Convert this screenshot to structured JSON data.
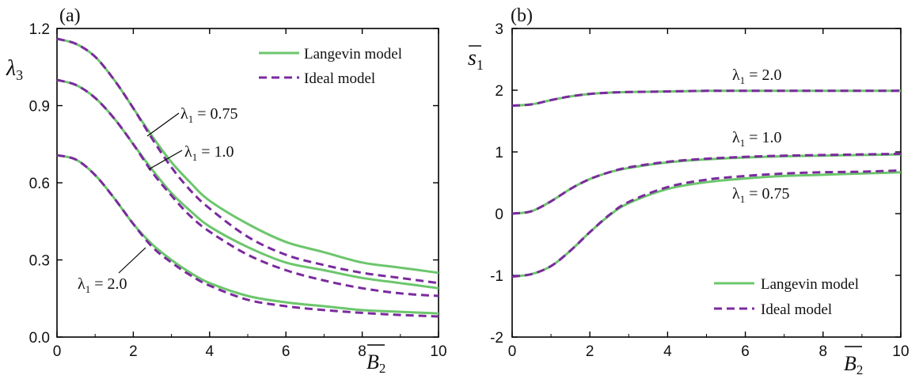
{
  "colors": {
    "langevin": "#6cc66c",
    "ideal": "#7b2a9e",
    "axis": "#000000"
  },
  "chart_data": [
    {
      "type": "line",
      "panel_label": "(a)",
      "xlabel": "B",
      "xlabel_sub": "2",
      "ylabel": "λ",
      "ylabel_sub": "3",
      "xlim": [
        0,
        10
      ],
      "ylim": [
        0,
        1.2
      ],
      "xticks": [
        "0",
        "2",
        "4",
        "6",
        "8",
        "10"
      ],
      "yticks": [
        "0.0",
        "0.3",
        "0.6",
        "0.9",
        "1.2"
      ],
      "legend": {
        "position": "top-right",
        "entries": [
          "Langevin model",
          "Ideal model"
        ]
      },
      "series": [
        {
          "name": "Langevin model",
          "curve": "λ1 = 0.75",
          "x": [
            0,
            0.5,
            1,
            1.5,
            2,
            2.5,
            3,
            3.5,
            4,
            5,
            6,
            7,
            8,
            9,
            10
          ],
          "y": [
            1.16,
            1.14,
            1.09,
            1.0,
            0.89,
            0.78,
            0.68,
            0.6,
            0.53,
            0.44,
            0.37,
            0.33,
            0.29,
            0.27,
            0.25
          ]
        },
        {
          "name": "Ideal model",
          "curve": "λ1 = 0.75",
          "x": [
            0,
            0.5,
            1,
            1.5,
            2,
            2.5,
            3,
            3.5,
            4,
            5,
            6,
            7,
            8,
            9,
            10
          ],
          "y": [
            1.16,
            1.14,
            1.09,
            1.0,
            0.89,
            0.77,
            0.66,
            0.57,
            0.5,
            0.39,
            0.32,
            0.28,
            0.25,
            0.23,
            0.21
          ]
        },
        {
          "name": "Langevin model",
          "curve": "λ1 = 1.0",
          "x": [
            0,
            0.5,
            1,
            1.5,
            2,
            2.5,
            3,
            3.5,
            4,
            5,
            6,
            7,
            8,
            9,
            10
          ],
          "y": [
            1.0,
            0.98,
            0.93,
            0.85,
            0.75,
            0.65,
            0.56,
            0.49,
            0.43,
            0.35,
            0.29,
            0.26,
            0.23,
            0.21,
            0.19
          ]
        },
        {
          "name": "Ideal model",
          "curve": "λ1 = 1.0",
          "x": [
            0,
            0.5,
            1,
            1.5,
            2,
            2.5,
            3,
            3.5,
            4,
            5,
            6,
            7,
            8,
            9,
            10
          ],
          "y": [
            1.0,
            0.98,
            0.93,
            0.85,
            0.75,
            0.64,
            0.55,
            0.47,
            0.41,
            0.32,
            0.26,
            0.22,
            0.19,
            0.17,
            0.16
          ]
        },
        {
          "name": "Langevin model",
          "curve": "λ1 = 2.0",
          "x": [
            0,
            0.5,
            1,
            1.5,
            2,
            2.5,
            3,
            3.5,
            4,
            5,
            6,
            7,
            8,
            9,
            10
          ],
          "y": [
            0.707,
            0.69,
            0.63,
            0.54,
            0.44,
            0.36,
            0.3,
            0.25,
            0.21,
            0.16,
            0.135,
            0.12,
            0.105,
            0.098,
            0.092
          ]
        },
        {
          "name": "Ideal model",
          "curve": "λ1 = 2.0",
          "x": [
            0,
            0.5,
            1,
            1.5,
            2,
            2.5,
            3,
            3.5,
            4,
            5,
            6,
            7,
            8,
            9,
            10
          ],
          "y": [
            0.707,
            0.69,
            0.63,
            0.54,
            0.44,
            0.35,
            0.29,
            0.24,
            0.2,
            0.145,
            0.12,
            0.105,
            0.094,
            0.086,
            0.08
          ]
        }
      ],
      "annotations": [
        {
          "text": "λ",
          "sub": "1",
          "value": "= 0.75",
          "point": [
            2.4,
            0.77
          ]
        },
        {
          "text": "λ",
          "sub": "1",
          "value": "= 1.0",
          "point": [
            2.3,
            0.63
          ]
        },
        {
          "text": "λ",
          "sub": "1",
          "value": "= 2.0",
          "point": [
            2.3,
            0.34
          ]
        }
      ]
    },
    {
      "type": "line",
      "panel_label": "(b)",
      "xlabel": "B",
      "xlabel_sub": "2",
      "ylabel": "s",
      "ylabel_sub": "1",
      "xlim": [
        0,
        10
      ],
      "ylim": [
        -2,
        3
      ],
      "xticks": [
        "0",
        "2",
        "4",
        "6",
        "8",
        "10"
      ],
      "yticks": [
        "-2",
        "-1",
        "0",
        "1",
        "2",
        "3"
      ],
      "legend": {
        "position": "bottom-right",
        "entries": [
          "Langevin model",
          "Ideal model"
        ]
      },
      "series": [
        {
          "name": "Langevin model",
          "curve": "λ1 = 2.0",
          "x": [
            0,
            0.5,
            1,
            1.5,
            2,
            2.5,
            3,
            4,
            5,
            6,
            7,
            8,
            9,
            10
          ],
          "y": [
            1.75,
            1.77,
            1.84,
            1.9,
            1.94,
            1.96,
            1.97,
            1.98,
            1.99,
            1.99,
            1.99,
            1.99,
            1.99,
            1.99
          ]
        },
        {
          "name": "Ideal model",
          "curve": "λ1 = 2.0",
          "x": [
            0,
            0.5,
            1,
            1.5,
            2,
            2.5,
            3,
            4,
            5,
            6,
            7,
            8,
            9,
            10
          ],
          "y": [
            1.75,
            1.77,
            1.84,
            1.9,
            1.94,
            1.96,
            1.97,
            1.98,
            1.99,
            1.99,
            1.99,
            1.99,
            1.99,
            1.99
          ]
        },
        {
          "name": "Langevin model",
          "curve": "λ1 = 1.0",
          "x": [
            0,
            0.5,
            1,
            1.5,
            2,
            2.5,
            3,
            4,
            5,
            6,
            7,
            8,
            9,
            10
          ],
          "y": [
            0,
            0.04,
            0.2,
            0.4,
            0.56,
            0.67,
            0.74,
            0.83,
            0.88,
            0.91,
            0.93,
            0.94,
            0.95,
            0.96
          ]
        },
        {
          "name": "Ideal model",
          "curve": "λ1 = 1.0",
          "x": [
            0,
            0.5,
            1,
            1.5,
            2,
            2.5,
            3,
            4,
            5,
            6,
            7,
            8,
            9,
            10
          ],
          "y": [
            0,
            0.04,
            0.2,
            0.4,
            0.56,
            0.67,
            0.75,
            0.84,
            0.89,
            0.92,
            0.94,
            0.95,
            0.96,
            0.97
          ]
        },
        {
          "name": "Langevin model",
          "curve": "λ1 = 0.75",
          "x": [
            0,
            0.5,
            1,
            1.5,
            2,
            2.5,
            3,
            4,
            5,
            6,
            7,
            8,
            9,
            10
          ],
          "y": [
            -1.02,
            -0.98,
            -0.85,
            -0.6,
            -0.3,
            -0.03,
            0.17,
            0.4,
            0.51,
            0.57,
            0.61,
            0.63,
            0.65,
            0.67
          ]
        },
        {
          "name": "Ideal model",
          "curve": "λ1 = 0.75",
          "x": [
            0,
            0.5,
            1,
            1.5,
            2,
            2.5,
            3,
            4,
            5,
            6,
            7,
            8,
            9,
            10
          ],
          "y": [
            -1.02,
            -0.98,
            -0.85,
            -0.6,
            -0.3,
            -0.02,
            0.19,
            0.43,
            0.55,
            0.61,
            0.65,
            0.67,
            0.68,
            0.7
          ]
        }
      ],
      "annotations": [
        {
          "text": "λ",
          "sub": "1",
          "value": "= 2.0"
        },
        {
          "text": "λ",
          "sub": "1",
          "value": "= 1.0"
        },
        {
          "text": "λ",
          "sub": "1",
          "value": "= 0.75"
        }
      ]
    }
  ]
}
